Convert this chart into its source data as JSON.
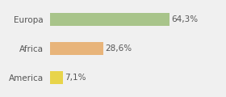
{
  "categories": [
    "Europa",
    "Africa",
    "America"
  ],
  "values": [
    64.3,
    28.6,
    7.1
  ],
  "labels": [
    "64,3%",
    "28,6%",
    "7,1%"
  ],
  "bar_colors": [
    "#a8c48a",
    "#e8b47a",
    "#e8d44a"
  ],
  "background_color": "#f0f0f0",
  "xlim": [
    0,
    80
  ],
  "bar_height": 0.45,
  "label_fontsize": 7.5,
  "tick_fontsize": 7.5
}
